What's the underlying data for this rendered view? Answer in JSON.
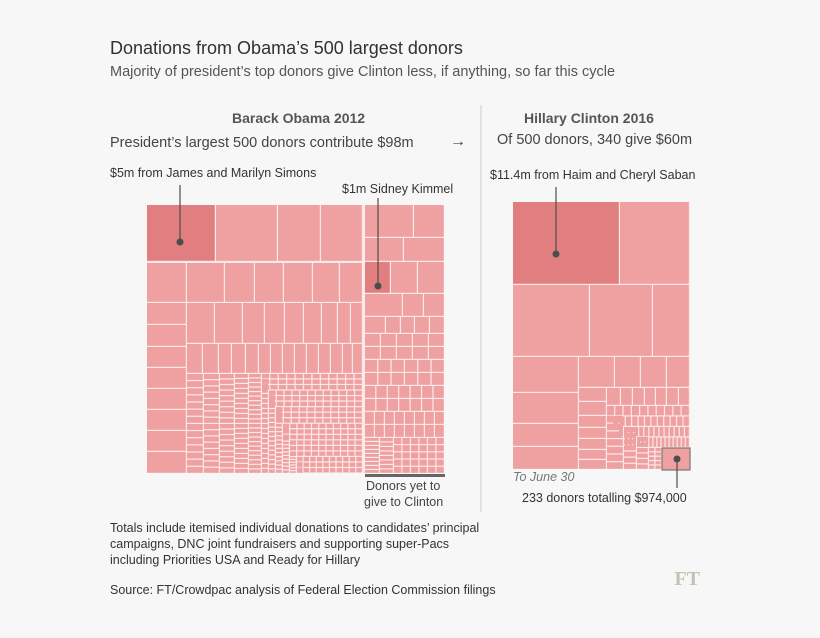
{
  "title": "Donations from Obama’s 500 largest donors",
  "subtitle": "Majority of president’s top donors give Clinton less, if anything, so far this cycle",
  "chart_data": [
    {
      "type": "treemap",
      "title": "Barack Obama 2012",
      "subtitle": "President’s largest 500 donors contribute $98m",
      "arrow": "→",
      "donors": 500,
      "total_usd_m": 98,
      "annotations": [
        {
          "label": "$5m from James and Marilyn Simons",
          "value_usd_m": 5
        },
        {
          "label": "$1m Sidney Kimmel",
          "value_usd_m": 1
        }
      ],
      "segment_label": "Donors yet to give to Clinton",
      "segment_label_lines": [
        "Donors yet to",
        "give to Clinton"
      ]
    },
    {
      "type": "treemap",
      "title": "Hillary Clinton 2016",
      "subtitle": "Of 500 donors, 340 give $60m",
      "donors": 340,
      "total_usd_m": 60,
      "annotations": [
        {
          "label": "$11.4m from Haim and Cheryl Saban",
          "value_usd_m": 11.4
        },
        {
          "label": "233 donors totalling $974,000",
          "donors": 233,
          "value_usd": 974000
        }
      ],
      "date_note": "To June 30"
    }
  ],
  "colors": {
    "cell": "#efa0a0",
    "highlight": "#e17f80",
    "gap": "#fbe9e9",
    "marker": "#4d4d4d"
  },
  "notes": "Totals include itemised individual donations to candidates’ principal campaigns, DNC joint fundraisers and supporting super-Pacs including Priorities USA and Ready for Hillary",
  "source": "Source: FT/Crowdpac analysis of Federal Election Commission filings",
  "logo": "FT"
}
